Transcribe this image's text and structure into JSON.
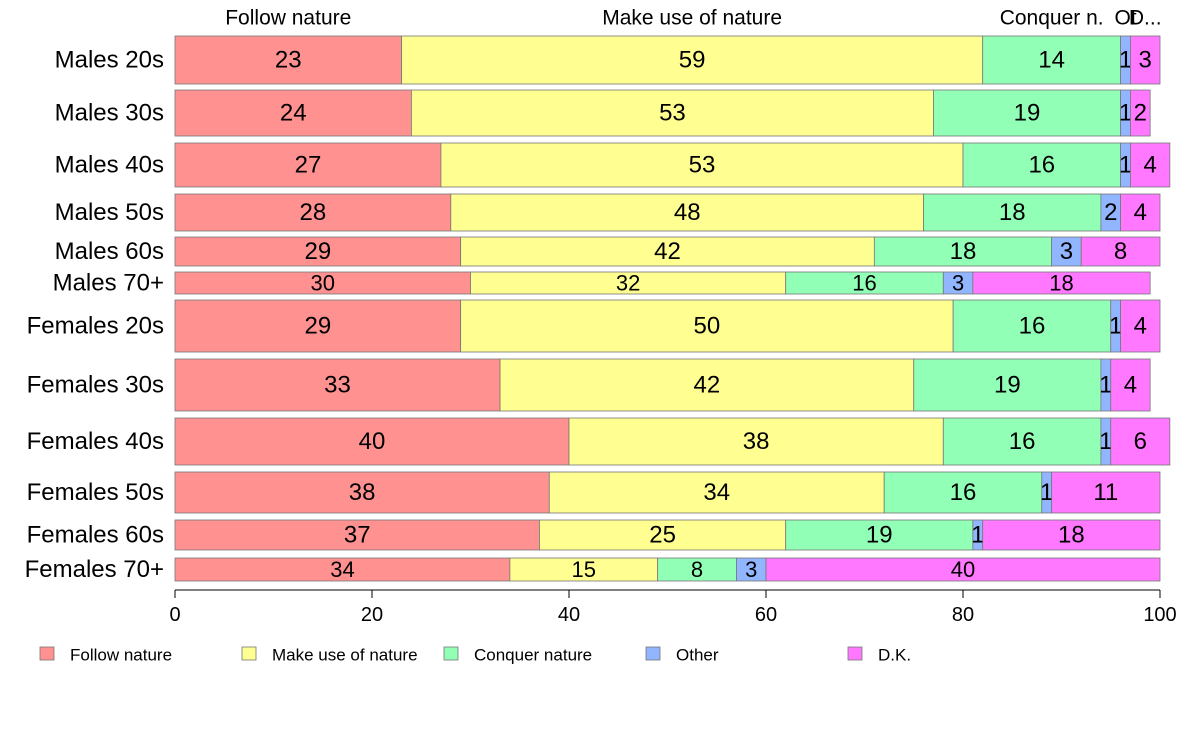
{
  "chart_data": {
    "type": "bar",
    "orientation": "horizontal",
    "stacked": true,
    "xlim": [
      0,
      100
    ],
    "x_ticks": [
      "0",
      "20",
      "40",
      "60",
      "80",
      "100"
    ],
    "top_labels": [
      "Follow nature",
      "Make use of nature",
      "Conquer n.",
      "Ot",
      "D..."
    ],
    "categories": [
      "Males 20s",
      "Males 30s",
      "Males 40s",
      "Males 50s",
      "Males 60s",
      "Males 70+",
      "Females 20s",
      "Females 30s",
      "Females 40s",
      "Females 50s",
      "Females 60s",
      "Females 70+"
    ],
    "series": [
      {
        "name": "Follow nature",
        "color": "#ff9191",
        "values": [
          23,
          24,
          27,
          28,
          29,
          30,
          29,
          33,
          40,
          38,
          37,
          34
        ]
      },
      {
        "name": "Make use of nature",
        "color": "#ffff91",
        "values": [
          59,
          53,
          53,
          48,
          42,
          32,
          50,
          42,
          38,
          34,
          25,
          15
        ]
      },
      {
        "name": "Conquer nature",
        "color": "#91ffb6",
        "values": [
          14,
          19,
          16,
          18,
          18,
          16,
          16,
          19,
          16,
          16,
          19,
          8
        ]
      },
      {
        "name": "Other",
        "color": "#91b6ff",
        "values": [
          1,
          1,
          1,
          2,
          3,
          3,
          1,
          1,
          1,
          1,
          1,
          3
        ]
      },
      {
        "name": "D.K.",
        "color": "#ff78ff",
        "values": [
          3,
          2,
          4,
          4,
          8,
          18,
          4,
          4,
          6,
          11,
          18,
          40
        ]
      }
    ],
    "legend": {
      "position": "bottom",
      "entries": [
        "Follow nature",
        "Make use of nature",
        "Conquer nature",
        "Other",
        "D.K."
      ]
    }
  }
}
